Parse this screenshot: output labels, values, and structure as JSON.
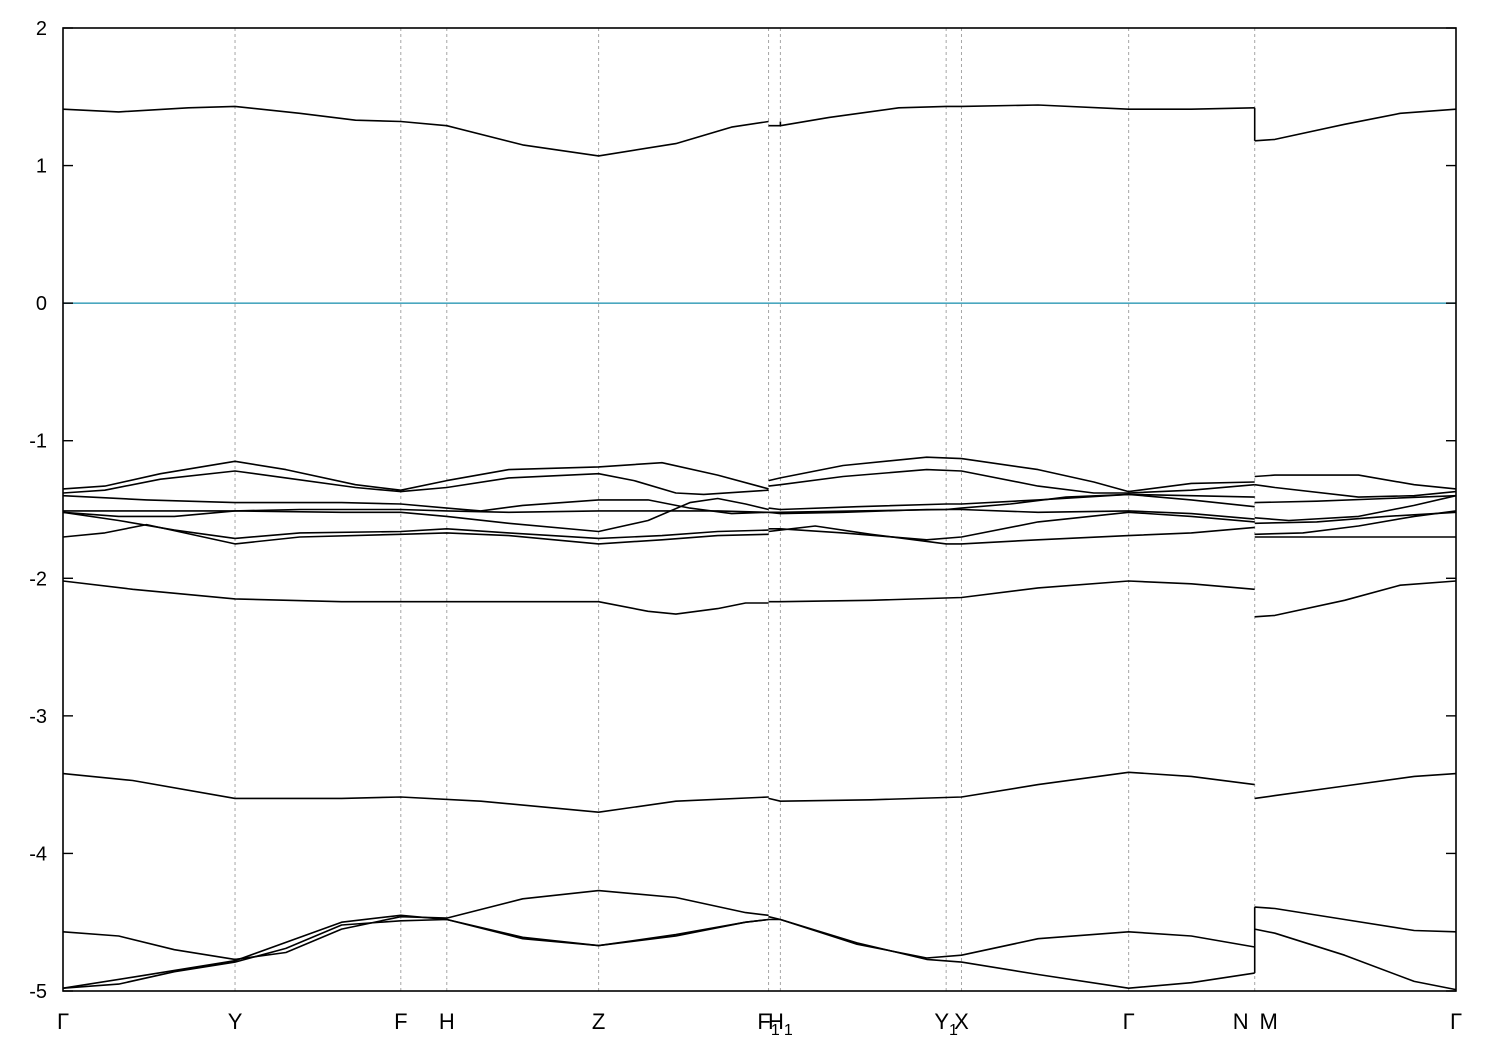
{
  "chart_data": {
    "type": "line",
    "title": "",
    "xlabel": "",
    "ylabel": "",
    "ylim": [
      -5,
      2
    ],
    "xlim": [
      0,
      1
    ],
    "grid": "vertical dashed lines at high-symmetry points",
    "legend": "none",
    "colors": {
      "bands": "#000000",
      "fermi": "#4aa7bf",
      "grid": "#a6a6a6",
      "frame": "#000000"
    },
    "yticks": [
      {
        "value": 2,
        "label": "2"
      },
      {
        "value": 1,
        "label": "1"
      },
      {
        "value": 0,
        "label": "0"
      },
      {
        "value": -1,
        "label": "-1"
      },
      {
        "value": -2,
        "label": "-2"
      },
      {
        "value": -3,
        "label": "-3"
      },
      {
        "value": -4,
        "label": "-4"
      },
      {
        "value": -5,
        "label": "-5"
      }
    ],
    "kpoints": [
      {
        "x": 0.0,
        "label": "Γ",
        "sub": ""
      },
      {
        "x": 0.1235,
        "label": "Y",
        "sub": ""
      },
      {
        "x": 0.2425,
        "label": "F",
        "sub": ""
      },
      {
        "x": 0.2755,
        "label": "H",
        "sub": ""
      },
      {
        "x": 0.3845,
        "label": "Z",
        "sub": ""
      },
      {
        "x": 0.5065,
        "label": "F",
        "sub": "1"
      },
      {
        "x": 0.515,
        "label": "H",
        "sub": "1"
      },
      {
        "x": 0.634,
        "label": "Y",
        "sub": "1"
      },
      {
        "x": 0.645,
        "label": "X",
        "sub": ""
      },
      {
        "x": 0.765,
        "label": "Γ",
        "sub": ""
      },
      {
        "x": 0.8555,
        "label": "N",
        "sub": ""
      },
      {
        "x": 0.8555,
        "label": "M",
        "sub": ""
      },
      {
        "x": 1.0,
        "label": "Γ",
        "sub": ""
      }
    ],
    "fermi_level": 0,
    "series": [
      {
        "x": [
          0,
          0.04,
          0.09,
          0.1235,
          0.17,
          0.21,
          0.2425,
          0.2755,
          0.33,
          0.3845,
          0.44,
          0.48,
          0.5065
        ],
        "y": [
          1.41,
          1.39,
          1.42,
          1.43,
          1.38,
          1.33,
          1.32,
          1.29,
          1.15,
          1.07,
          1.16,
          1.28,
          1.32
        ]
      },
      {
        "x": [
          0.5065,
          0.515,
          0.55,
          0.6,
          0.634,
          0.645,
          0.7,
          0.765,
          0.81,
          0.8555
        ],
        "y": [
          1.29,
          1.29,
          1.35,
          1.42,
          1.43,
          1.43,
          1.44,
          1.41,
          1.41,
          1.42
        ]
      },
      {
        "x": [
          0.8555,
          0.87,
          0.92,
          0.96,
          1.0
        ],
        "y": [
          1.18,
          1.19,
          1.3,
          1.38,
          1.41
        ]
      },
      {
        "x": [
          0,
          0.03,
          0.07,
          0.1235,
          0.16,
          0.21,
          0.2425,
          0.2755,
          0.32,
          0.3845,
          0.43,
          0.47,
          0.5065
        ],
        "y": [
          -1.35,
          -1.33,
          -1.24,
          -1.15,
          -1.21,
          -1.32,
          -1.36,
          -1.29,
          -1.21,
          -1.19,
          -1.16,
          -1.25,
          -1.35
        ]
      },
      {
        "x": [
          0.5065,
          0.515,
          0.56,
          0.62,
          0.645,
          0.7,
          0.74,
          0.765,
          0.81,
          0.8555
        ],
        "y": [
          -1.29,
          -1.27,
          -1.18,
          -1.12,
          -1.13,
          -1.21,
          -1.3,
          -1.37,
          -1.31,
          -1.3
        ]
      },
      {
        "x": [
          0.8555,
          0.87,
          0.93,
          0.97,
          1.0
        ],
        "y": [
          -1.26,
          -1.25,
          -1.25,
          -1.32,
          -1.35
        ]
      },
      {
        "x": [
          0,
          0.03,
          0.07,
          0.1235,
          0.16,
          0.21,
          0.2425,
          0.2755,
          0.32,
          0.3845,
          0.41,
          0.44,
          0.46,
          0.5065
        ],
        "y": [
          -1.38,
          -1.36,
          -1.28,
          -1.22,
          -1.27,
          -1.34,
          -1.37,
          -1.34,
          -1.27,
          -1.24,
          -1.29,
          -1.38,
          -1.39,
          -1.36
        ]
      },
      {
        "x": [
          0.5065,
          0.515,
          0.56,
          0.62,
          0.645,
          0.7,
          0.74,
          0.765,
          0.81,
          0.8555
        ],
        "y": [
          -1.33,
          -1.32,
          -1.26,
          -1.21,
          -1.22,
          -1.33,
          -1.38,
          -1.38,
          -1.36,
          -1.32
        ]
      },
      {
        "x": [
          0.8555,
          0.87,
          0.93,
          0.97,
          1.0
        ],
        "y": [
          -1.32,
          -1.34,
          -1.41,
          -1.4,
          -1.37
        ]
      },
      {
        "x": [
          0,
          0.06,
          0.1235,
          0.2,
          0.2425,
          0.2755,
          0.3,
          0.33,
          0.3845,
          0.42,
          0.45,
          0.48,
          0.5065
        ],
        "y": [
          -1.4,
          -1.43,
          -1.45,
          -1.45,
          -1.46,
          -1.49,
          -1.51,
          -1.47,
          -1.43,
          -1.43,
          -1.49,
          -1.53,
          -1.52
        ]
      },
      {
        "x": [
          0.5065,
          0.515,
          0.57,
          0.634,
          0.645,
          0.7,
          0.765,
          0.81,
          0.8555
        ],
        "y": [
          -1.49,
          -1.5,
          -1.48,
          -1.46,
          -1.46,
          -1.43,
          -1.39,
          -1.4,
          -1.41
        ]
      },
      {
        "x": [
          0.8555,
          0.9,
          0.95,
          1.0
        ],
        "y": [
          -1.45,
          -1.44,
          -1.42,
          -1.4
        ]
      },
      {
        "x": [
          0,
          0.06,
          0.1235,
          0.2,
          0.2425,
          0.2755,
          0.32,
          0.3845,
          0.42,
          0.45,
          0.47,
          0.49,
          0.5065
        ],
        "y": [
          -1.51,
          -1.51,
          -1.51,
          -1.52,
          -1.52,
          -1.55,
          -1.6,
          -1.66,
          -1.58,
          -1.45,
          -1.42,
          -1.46,
          -1.5
        ]
      },
      {
        "x": [
          0.5065,
          0.515,
          0.57,
          0.634,
          0.645,
          0.68,
          0.72,
          0.765,
          0.81,
          0.8555
        ],
        "y": [
          -1.52,
          -1.52,
          -1.51,
          -1.5,
          -1.49,
          -1.46,
          -1.41,
          -1.39,
          -1.43,
          -1.48
        ]
      },
      {
        "x": [
          0.8555,
          0.88,
          0.93,
          0.97,
          1.0
        ],
        "y": [
          -1.56,
          -1.58,
          -1.55,
          -1.47,
          -1.4
        ]
      },
      {
        "x": [
          0,
          0.04,
          0.08,
          0.1235,
          0.17,
          0.2425,
          0.2755,
          0.32,
          0.3845,
          0.43,
          0.47,
          0.5065
        ],
        "y": [
          -1.52,
          -1.55,
          -1.55,
          -1.51,
          -1.5,
          -1.5,
          -1.51,
          -1.52,
          -1.51,
          -1.51,
          -1.51,
          -1.52
        ]
      },
      {
        "x": [
          0.5065,
          0.515,
          0.56,
          0.62,
          0.645,
          0.7,
          0.765,
          0.81,
          0.8555
        ],
        "y": [
          -1.52,
          -1.53,
          -1.52,
          -1.5,
          -1.5,
          -1.52,
          -1.51,
          -1.53,
          -1.57
        ]
      },
      {
        "x": [
          0.8555,
          0.9,
          0.95,
          1.0
        ],
        "y": [
          -1.6,
          -1.59,
          -1.55,
          -1.52
        ]
      },
      {
        "x": [
          0,
          0.04,
          0.08,
          0.1235,
          0.17,
          0.2425,
          0.2755,
          0.32,
          0.3845,
          0.43,
          0.47,
          0.5065
        ],
        "y": [
          -1.52,
          -1.58,
          -1.65,
          -1.71,
          -1.67,
          -1.66,
          -1.64,
          -1.67,
          -1.71,
          -1.69,
          -1.66,
          -1.65
        ]
      },
      {
        "x": [
          0.5065,
          0.515,
          0.56,
          0.62,
          0.645,
          0.7,
          0.765,
          0.81,
          0.8555
        ],
        "y": [
          -1.64,
          -1.64,
          -1.67,
          -1.72,
          -1.7,
          -1.59,
          -1.52,
          -1.55,
          -1.59
        ]
      },
      {
        "x": [
          0.8555,
          0.89,
          0.93,
          0.97,
          1.0
        ],
        "y": [
          -1.68,
          -1.67,
          -1.62,
          -1.55,
          -1.51
        ]
      },
      {
        "x": [
          0,
          0.03,
          0.06,
          0.1235,
          0.17,
          0.2425,
          0.2755,
          0.32,
          0.3845,
          0.43,
          0.47,
          0.5065
        ],
        "y": [
          -1.7,
          -1.67,
          -1.61,
          -1.75,
          -1.7,
          -1.68,
          -1.67,
          -1.69,
          -1.75,
          -1.72,
          -1.69,
          -1.68
        ]
      },
      {
        "x": [
          0.5065,
          0.515,
          0.54,
          0.58,
          0.634,
          0.645,
          0.7,
          0.765,
          0.81,
          0.8555
        ],
        "y": [
          -1.66,
          -1.65,
          -1.62,
          -1.68,
          -1.75,
          -1.75,
          -1.72,
          -1.69,
          -1.67,
          -1.63
        ]
      },
      {
        "x": [
          0.8555,
          0.9,
          0.95,
          1.0
        ],
        "y": [
          -1.7,
          -1.7,
          -1.7,
          -1.7
        ]
      },
      {
        "x": [
          0,
          0.05,
          0.1235,
          0.2,
          0.2425,
          0.3,
          0.3845,
          0.42,
          0.44,
          0.47,
          0.49,
          0.5065
        ],
        "y": [
          -2.02,
          -2.08,
          -2.15,
          -2.17,
          -2.17,
          -2.17,
          -2.17,
          -2.24,
          -2.26,
          -2.22,
          -2.18,
          -2.18
        ]
      },
      {
        "x": [
          0.5065,
          0.515,
          0.58,
          0.645,
          0.7,
          0.765,
          0.81,
          0.8555
        ],
        "y": [
          -2.17,
          -2.17,
          -2.16,
          -2.14,
          -2.07,
          -2.02,
          -2.04,
          -2.08
        ]
      },
      {
        "x": [
          0.8555,
          0.87,
          0.92,
          0.96,
          1.0
        ],
        "y": [
          -2.28,
          -2.27,
          -2.16,
          -2.05,
          -2.02
        ]
      },
      {
        "x": [
          0,
          0.05,
          0.1235,
          0.2,
          0.2425,
          0.3,
          0.3845,
          0.44,
          0.5065
        ],
        "y": [
          -3.42,
          -3.47,
          -3.6,
          -3.6,
          -3.59,
          -3.62,
          -3.7,
          -3.62,
          -3.59
        ]
      },
      {
        "x": [
          0.5065,
          0.515,
          0.58,
          0.645,
          0.7,
          0.765,
          0.81,
          0.8555
        ],
        "y": [
          -3.6,
          -3.62,
          -3.61,
          -3.59,
          -3.5,
          -3.41,
          -3.44,
          -3.5
        ]
      },
      {
        "x": [
          0.8555,
          0.87,
          0.92,
          0.97,
          1.0
        ],
        "y": [
          -3.6,
          -3.58,
          -3.51,
          -3.44,
          -3.42
        ]
      },
      {
        "x": [
          0,
          0.04,
          0.08,
          0.1235,
          0.16,
          0.2,
          0.2425,
          0.2755,
          0.33,
          0.3845,
          0.44,
          0.49,
          0.5065
        ],
        "y": [
          -4.57,
          -4.6,
          -4.7,
          -4.77,
          -4.72,
          -4.55,
          -4.46,
          -4.47,
          -4.33,
          -4.27,
          -4.32,
          -4.43,
          -4.45
        ]
      },
      {
        "x": [
          0.5065,
          0.515,
          0.57,
          0.62,
          0.645,
          0.7,
          0.765,
          0.81,
          0.8555
        ],
        "y": [
          -4.48,
          -4.48,
          -4.65,
          -4.77,
          -4.79,
          -4.88,
          -4.98,
          -4.94,
          -4.87
        ]
      },
      {
        "x": [
          0.8555,
          0.87,
          0.92,
          0.97,
          1.0
        ],
        "y": [
          -4.39,
          -4.4,
          -4.48,
          -4.56,
          -4.57
        ]
      },
      {
        "x": [
          0,
          0.04,
          0.08,
          0.1235,
          0.16,
          0.2,
          0.2425,
          0.2755,
          0.33,
          0.3845,
          0.44,
          0.49,
          0.5065
        ],
        "y": [
          -4.98,
          -4.95,
          -4.86,
          -4.79,
          -4.69,
          -4.52,
          -4.49,
          -4.48,
          -4.61,
          -4.67,
          -4.59,
          -4.5,
          -4.48
        ]
      },
      {
        "x": [
          0.5065,
          0.515,
          0.57,
          0.62,
          0.645,
          0.7,
          0.765,
          0.81,
          0.8555
        ],
        "y": [
          -4.46,
          -4.48,
          -4.66,
          -4.76,
          -4.74,
          -4.62,
          -4.57,
          -4.6,
          -4.68
        ]
      },
      {
        "x": [
          0.8555,
          0.87,
          0.92,
          0.97,
          1.0
        ],
        "y": [
          -4.55,
          -4.58,
          -4.74,
          -4.93,
          -4.99
        ]
      },
      {
        "x": [
          0,
          0.05,
          0.1235,
          0.2,
          0.2425,
          0.2755,
          0.33,
          0.3845,
          0.44,
          0.49,
          0.5065
        ],
        "y": [
          -4.98,
          -4.9,
          -4.78,
          -4.5,
          -4.45,
          -4.48,
          -4.62,
          -4.67,
          -4.6,
          -4.5,
          -4.48
        ]
      }
    ]
  }
}
